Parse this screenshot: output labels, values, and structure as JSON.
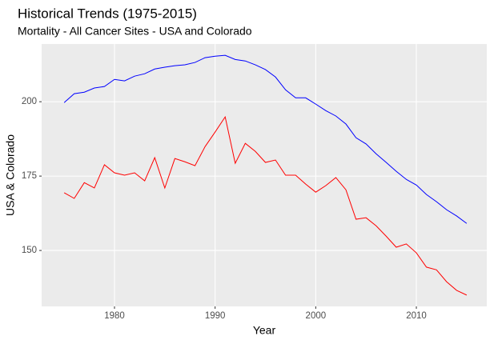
{
  "chart_data": {
    "type": "line",
    "title": "Historical Trends (1975-2015)",
    "subtitle": "Mortality - All Cancer Sites - USA and Colorado",
    "x_label": "Year",
    "y_label": "USA & Colorado",
    "x": [
      1975,
      1976,
      1977,
      1978,
      1979,
      1980,
      1981,
      1982,
      1983,
      1984,
      1985,
      1986,
      1987,
      1988,
      1989,
      1990,
      1991,
      1992,
      1993,
      1994,
      1995,
      1996,
      1997,
      1998,
      1999,
      2000,
      2001,
      2002,
      2003,
      2004,
      2005,
      2006,
      2007,
      2008,
      2009,
      2010,
      2011,
      2012,
      2013,
      2014,
      2015
    ],
    "series": [
      {
        "color": "#0000ff",
        "values": [
          199.7,
          202.7,
          203.2,
          204.6,
          205.1,
          207.5,
          207.0,
          208.6,
          209.4,
          211.0,
          211.6,
          212.1,
          212.4,
          213.2,
          214.8,
          215.3,
          215.6,
          214.2,
          213.7,
          212.4,
          210.8,
          208.3,
          204.0,
          201.3,
          201.3,
          199.2,
          197.0,
          195.2,
          192.5,
          187.9,
          185.8,
          182.5,
          179.6,
          176.6,
          173.9,
          172.0,
          168.8,
          166.4,
          163.7,
          161.6,
          159.1
        ]
      },
      {
        "color": "#ff0000",
        "values": [
          169.4,
          167.5,
          172.8,
          171.0,
          178.8,
          176.1,
          175.3,
          176.1,
          173.4,
          181.2,
          171.0,
          180.9,
          179.8,
          178.5,
          184.9,
          189.8,
          194.9,
          179.3,
          186.0,
          183.3,
          179.6,
          180.4,
          175.3,
          175.3,
          172.3,
          169.6,
          171.8,
          174.5,
          170.4,
          160.5,
          161.0,
          158.3,
          154.8,
          151.1,
          152.2,
          149.2,
          144.4,
          143.5,
          139.5,
          136.6,
          135.0
        ]
      }
    ],
    "xlim": [
      1972.76,
      2017.0
    ],
    "xticks": [
      1980,
      1990,
      2000,
      2010
    ],
    "ylim": [
      131.2,
      219.4
    ],
    "yticks": [
      150,
      175,
      200
    ],
    "grid": true
  }
}
